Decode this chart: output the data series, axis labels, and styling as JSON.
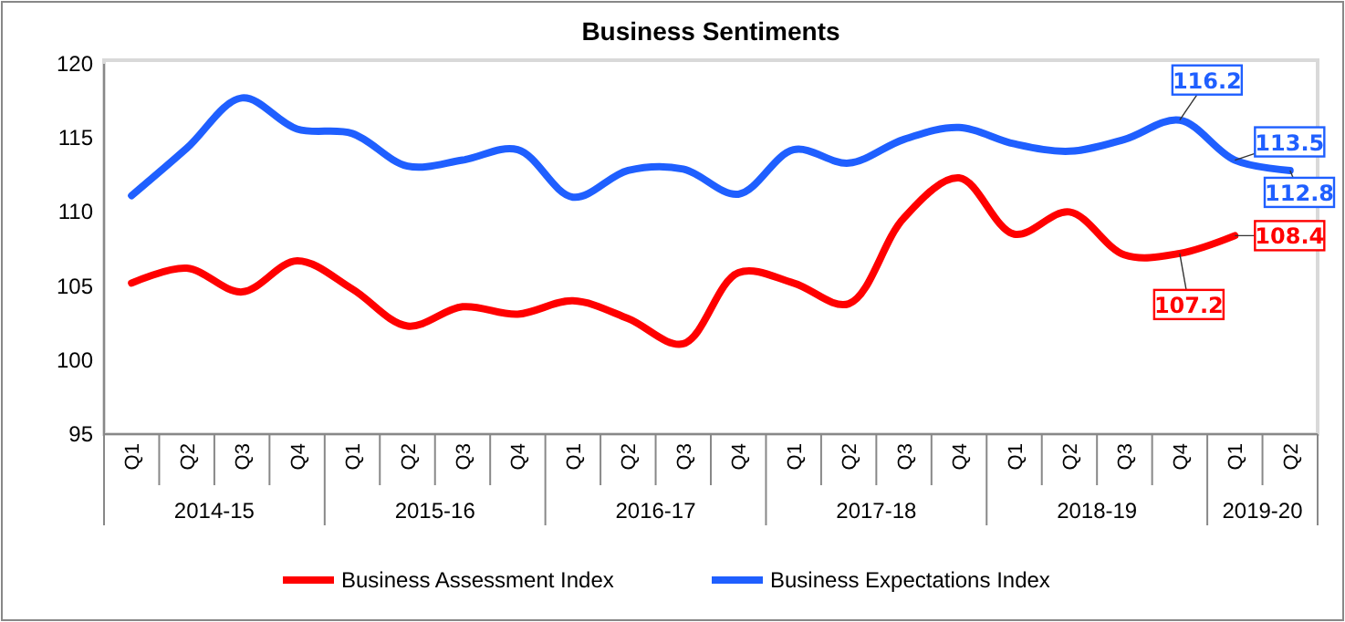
{
  "chart_data": {
    "type": "line",
    "title": "Business Sentiments",
    "categories": [
      "Q1",
      "Q2",
      "Q3",
      "Q4",
      "Q1",
      "Q2",
      "Q3",
      "Q4",
      "Q1",
      "Q2",
      "Q3",
      "Q4",
      "Q1",
      "Q2",
      "Q3",
      "Q4",
      "Q1",
      "Q2",
      "Q3",
      "Q4",
      "Q1",
      "Q2"
    ],
    "annotations": [
      "2014-15",
      "2015-16",
      "2016-17",
      "2017-18",
      "2018-19",
      "2019-20"
    ],
    "ylim": [
      95,
      120
    ],
    "yticks": [
      95,
      100,
      105,
      110,
      115,
      120
    ],
    "grid": false,
    "legend": "bottom",
    "marker": "none",
    "line_style": "solid",
    "series": [
      {
        "name": "Business Assessment Index",
        "color": "#ff0000",
        "values": [
          105.2,
          106.2,
          104.6,
          106.7,
          104.8,
          102.3,
          103.6,
          103.1,
          104.0,
          102.8,
          101.1,
          105.9,
          105.2,
          103.8,
          109.6,
          112.3,
          108.5,
          110.0,
          107.1,
          107.2,
          108.4,
          null
        ],
        "value_labels": [
          null,
          null,
          null,
          null,
          null,
          null,
          null,
          null,
          null,
          null,
          null,
          null,
          null,
          null,
          null,
          null,
          null,
          null,
          null,
          "107.2",
          "108.4",
          null
        ]
      },
      {
        "name": "Business Expectations Index",
        "color": "#1f5fff",
        "values": [
          111.1,
          114.3,
          117.7,
          115.6,
          115.3,
          113.1,
          113.5,
          114.2,
          111.0,
          112.8,
          112.9,
          111.2,
          114.2,
          113.3,
          114.9,
          115.7,
          114.6,
          114.1,
          114.9,
          116.2,
          113.5,
          112.8
        ],
        "value_labels": [
          null,
          null,
          null,
          null,
          null,
          null,
          null,
          null,
          null,
          null,
          null,
          null,
          null,
          null,
          null,
          null,
          null,
          null,
          null,
          "116.2",
          "113.5",
          "112.8"
        ]
      }
    ]
  }
}
